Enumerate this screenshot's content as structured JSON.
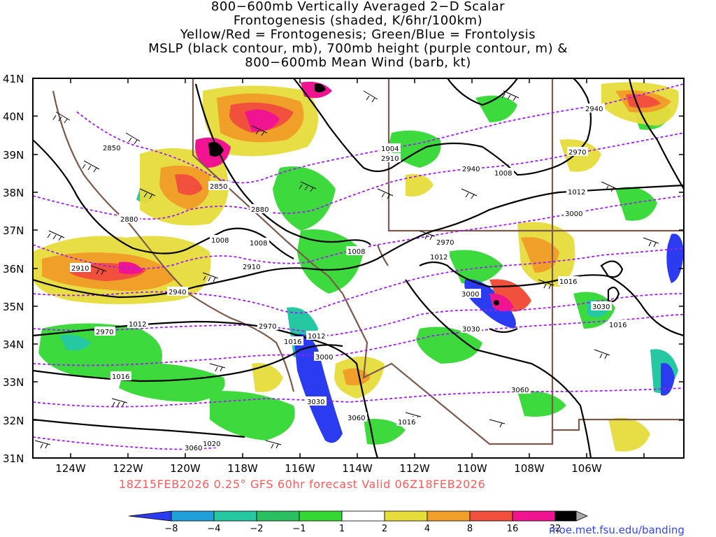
{
  "title_lines": [
    "800−600mb Vertically Averaged 2−D Scalar",
    "Frontogenesis (shaded, K/6hr/100km)",
    "Yellow/Red = Frontogenesis;  Green/Blue = Frontolysis",
    "MSLP (black contour, mb), 700mb height (purple contour, m) &",
    "800−600mb Mean Wind (barb, kt)"
  ],
  "y_axis": [
    "41N",
    "40N",
    "39N",
    "38N",
    "37N",
    "36N",
    "35N",
    "34N",
    "33N",
    "32N",
    "31N"
  ],
  "x_axis": [
    "124W",
    "122W",
    "120W",
    "118W",
    "116W",
    "114W",
    "112W",
    "110W",
    "108W",
    "106W"
  ],
  "pressure_labels": [
    "1004",
    "1008",
    "1008",
    "1008",
    "1008",
    "1012",
    "1012",
    "1012",
    "1012",
    "1016",
    "1016",
    "1016",
    "1016",
    "1016",
    "1020"
  ],
  "height_labels": [
    "2850",
    "2850",
    "2880",
    "2880",
    "2910",
    "2910",
    "2910",
    "2940",
    "2940",
    "2940",
    "2970",
    "2970",
    "2970",
    "2970",
    "3000",
    "3000",
    "3000",
    "3030",
    "3030",
    "3030",
    "3060",
    "3060",
    "3060"
  ],
  "footer": "18Z15FEB2026 0.25° GFS 60hr forecast Valid 06Z18FEB2026",
  "colorbar": {
    "labels": [
      "−8",
      "−4",
      "−2",
      "−1",
      "1",
      "2",
      "4",
      "8",
      "16",
      "32"
    ],
    "colors": [
      "#2b3cf0",
      "#1fa0d8",
      "#25c8a0",
      "#2ac060",
      "#33d833",
      "#ffffff",
      "#e6dc3c",
      "#f0a028",
      "#f0503c",
      "#f01490",
      "#000000",
      "#a8a8a8"
    ]
  },
  "credit": "moe.met.fsu.edu/banding",
  "colors": {
    "pressure": "#000000",
    "height": "#a020f0",
    "border": "#7a5a4a",
    "footer": "#ff5a5a"
  }
}
